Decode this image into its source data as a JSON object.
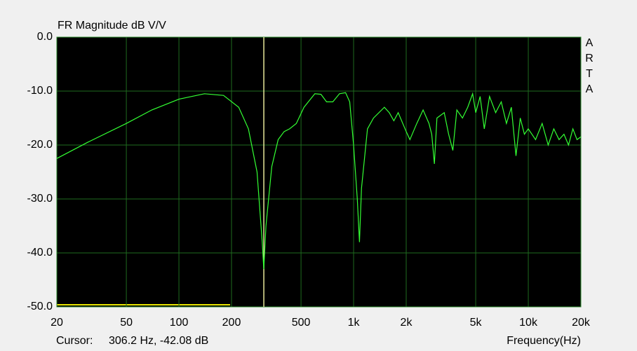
{
  "chart_data": {
    "type": "line",
    "title": "FR Magnitude dB V/V",
    "side_label": "ARTA",
    "x_label": "Frequency(Hz)",
    "cursor_caption": "Cursor:",
    "cursor_readout": "306.2 Hz, -42.08 dB",
    "cursor_x": 306.2,
    "log_x": true,
    "grid": true,
    "xlim": [
      20,
      20000
    ],
    "ylim": [
      -50,
      0
    ],
    "xticks": [
      20,
      50,
      100,
      200,
      500,
      {
        "value": 1000,
        "label": "1k"
      },
      {
        "value": 2000,
        "label": "2k"
      },
      {
        "value": 5000,
        "label": "5k"
      },
      {
        "value": 10000,
        "label": "10k"
      },
      {
        "value": 20000,
        "label": "20k"
      }
    ],
    "yticks": [
      {
        "value": 0,
        "label": "0.0"
      },
      {
        "value": -10,
        "label": "-10.0"
      },
      {
        "value": -20,
        "label": "-20.0"
      },
      {
        "value": -30,
        "label": "-30.0"
      },
      {
        "value": -40,
        "label": "-40.0"
      },
      {
        "value": -50,
        "label": "-50.0"
      }
    ],
    "x": [
      20,
      30,
      50,
      70,
      100,
      140,
      180,
      220,
      250,
      280,
      300,
      306,
      315,
      340,
      370,
      400,
      430,
      470,
      520,
      600,
      650,
      700,
      760,
      830,
      900,
      950,
      1000,
      1050,
      1080,
      1110,
      1200,
      1300,
      1500,
      1600,
      1700,
      1800,
      2000,
      2100,
      2300,
      2500,
      2700,
      2800,
      2900,
      3000,
      3300,
      3500,
      3700,
      3900,
      4200,
      4500,
      4800,
      5000,
      5300,
      5600,
      6000,
      6500,
      7000,
      7500,
      8000,
      8500,
      9000,
      9500,
      10000,
      11000,
      12000,
      13000,
      14000,
      15000,
      16000,
      17000,
      18000,
      19000,
      20000
    ],
    "series": [
      {
        "color": "#33ff33",
        "values": [
          -22.5,
          -19.5,
          -16,
          -13.5,
          -11.5,
          -10.5,
          -10.8,
          -13,
          -17,
          -25,
          -38,
          -43,
          -35,
          -24,
          -19,
          -17.5,
          -17,
          -16,
          -13,
          -10.5,
          -10.6,
          -12,
          -12,
          -10.5,
          -10.3,
          -12,
          -20,
          -30,
          -38,
          -28,
          -17,
          -15,
          -13,
          -14,
          -15.5,
          -14,
          -17.5,
          -19,
          -16,
          -13.5,
          -16,
          -18,
          -23.5,
          -15,
          -14,
          -18,
          -21,
          -13.5,
          -15,
          -13,
          -10.5,
          -14,
          -11,
          -17,
          -11,
          -14,
          -12,
          -16,
          -13,
          -22,
          -15,
          -18,
          -17,
          -19,
          -16,
          -20,
          -17,
          -19,
          -18,
          -20,
          -17,
          -19,
          -18.5
        ]
      }
    ]
  }
}
